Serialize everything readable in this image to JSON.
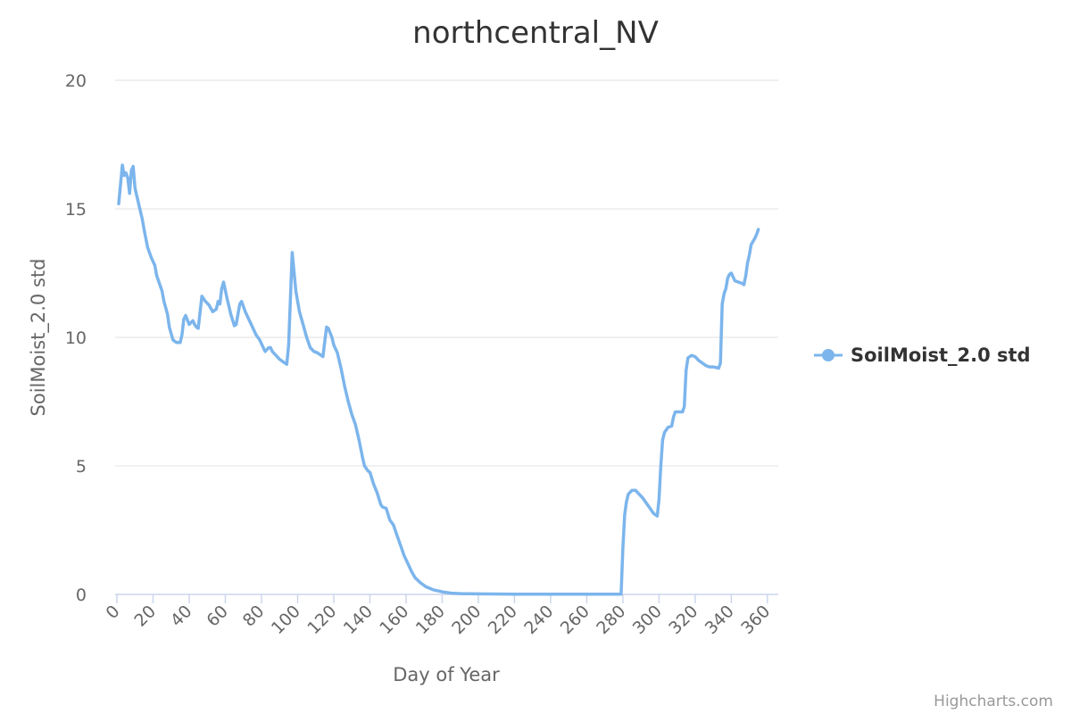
{
  "chart_data": {
    "type": "line",
    "title": "northcentral_NV",
    "xlabel": "Day of Year",
    "ylabel": "SoilMoist_2.0 std",
    "xlim": [
      -1,
      366
    ],
    "ylim": [
      0,
      20
    ],
    "x_ticks": [
      0,
      20,
      40,
      60,
      80,
      100,
      120,
      140,
      160,
      180,
      200,
      220,
      240,
      260,
      280,
      300,
      320,
      340,
      360
    ],
    "y_ticks": [
      0,
      5,
      10,
      15,
      20
    ],
    "grid": "horizontal",
    "legend_position": "right",
    "series": [
      {
        "name": "SoilMoist_2.0 std",
        "color": "#7cb5ec",
        "points": [
          [
            1,
            15.2
          ],
          [
            3,
            16.7
          ],
          [
            4,
            16.3
          ],
          [
            5,
            16.4
          ],
          [
            6,
            16.2
          ],
          [
            7,
            15.6
          ],
          [
            8,
            16.5
          ],
          [
            9,
            16.65
          ],
          [
            10,
            15.8
          ],
          [
            12,
            15.2
          ],
          [
            14,
            14.6
          ],
          [
            15,
            14.2
          ],
          [
            17,
            13.5
          ],
          [
            19,
            13.1
          ],
          [
            21,
            12.8
          ],
          [
            22,
            12.4
          ],
          [
            24,
            12.0
          ],
          [
            25,
            11.8
          ],
          [
            26,
            11.4
          ],
          [
            28,
            10.9
          ],
          [
            29,
            10.4
          ],
          [
            31,
            9.9
          ],
          [
            33,
            9.8
          ],
          [
            35,
            9.8
          ],
          [
            36,
            10.1
          ],
          [
            37,
            10.7
          ],
          [
            38,
            10.85
          ],
          [
            40,
            10.5
          ],
          [
            42,
            10.65
          ],
          [
            43,
            10.5
          ],
          [
            44,
            10.4
          ],
          [
            45,
            10.35
          ],
          [
            47,
            11.6
          ],
          [
            49,
            11.4
          ],
          [
            51,
            11.25
          ],
          [
            53,
            11.0
          ],
          [
            54,
            11.05
          ],
          [
            55,
            11.1
          ],
          [
            56,
            11.4
          ],
          [
            57,
            11.3
          ],
          [
            58,
            11.9
          ],
          [
            59,
            12.15
          ],
          [
            61,
            11.5
          ],
          [
            63,
            10.9
          ],
          [
            65,
            10.45
          ],
          [
            66,
            10.5
          ],
          [
            68,
            11.3
          ],
          [
            69,
            11.4
          ],
          [
            71,
            11.0
          ],
          [
            73,
            10.7
          ],
          [
            75,
            10.4
          ],
          [
            77,
            10.1
          ],
          [
            79,
            9.9
          ],
          [
            81,
            9.6
          ],
          [
            82,
            9.45
          ],
          [
            84,
            9.6
          ],
          [
            85,
            9.6
          ],
          [
            86,
            9.45
          ],
          [
            88,
            9.3
          ],
          [
            90,
            9.15
          ],
          [
            92,
            9.05
          ],
          [
            94,
            8.95
          ],
          [
            95,
            9.7
          ],
          [
            97,
            13.3
          ],
          [
            99,
            11.8
          ],
          [
            101,
            11.0
          ],
          [
            103,
            10.5
          ],
          [
            105,
            10.0
          ],
          [
            107,
            9.6
          ],
          [
            109,
            9.45
          ],
          [
            111,
            9.4
          ],
          [
            113,
            9.3
          ],
          [
            114,
            9.25
          ],
          [
            116,
            10.4
          ],
          [
            117,
            10.35
          ],
          [
            119,
            10.0
          ],
          [
            120,
            9.7
          ],
          [
            122,
            9.4
          ],
          [
            124,
            8.8
          ],
          [
            126,
            8.1
          ],
          [
            128,
            7.5
          ],
          [
            130,
            7.0
          ],
          [
            132,
            6.6
          ],
          [
            134,
            6.0
          ],
          [
            136,
            5.3
          ],
          [
            137,
            5.0
          ],
          [
            139,
            4.8
          ],
          [
            140,
            4.75
          ],
          [
            142,
            4.3
          ],
          [
            144,
            3.95
          ],
          [
            146,
            3.5
          ],
          [
            147,
            3.4
          ],
          [
            149,
            3.35
          ],
          [
            151,
            2.9
          ],
          [
            153,
            2.7
          ],
          [
            155,
            2.3
          ],
          [
            157,
            1.9
          ],
          [
            159,
            1.5
          ],
          [
            161,
            1.2
          ],
          [
            163,
            0.9
          ],
          [
            165,
            0.65
          ],
          [
            168,
            0.45
          ],
          [
            171,
            0.3
          ],
          [
            175,
            0.18
          ],
          [
            180,
            0.1
          ],
          [
            185,
            0.05
          ],
          [
            190,
            0.03
          ],
          [
            200,
            0.02
          ],
          [
            220,
            0.01
          ],
          [
            250,
            0.01
          ],
          [
            279,
            0.01
          ],
          [
            280,
            1.8
          ],
          [
            281,
            3.1
          ],
          [
            282,
            3.6
          ],
          [
            283,
            3.9
          ],
          [
            285,
            4.05
          ],
          [
            287,
            4.05
          ],
          [
            289,
            3.9
          ],
          [
            291,
            3.75
          ],
          [
            293,
            3.55
          ],
          [
            295,
            3.35
          ],
          [
            297,
            3.15
          ],
          [
            299,
            3.05
          ],
          [
            300,
            3.7
          ],
          [
            301,
            5.0
          ],
          [
            302,
            6.0
          ],
          [
            303,
            6.3
          ],
          [
            305,
            6.5
          ],
          [
            307,
            6.55
          ],
          [
            308,
            6.9
          ],
          [
            309,
            7.1
          ],
          [
            311,
            7.1
          ],
          [
            313,
            7.1
          ],
          [
            314,
            7.3
          ],
          [
            315,
            8.7
          ],
          [
            316,
            9.2
          ],
          [
            318,
            9.3
          ],
          [
            320,
            9.25
          ],
          [
            322,
            9.1
          ],
          [
            324,
            9.0
          ],
          [
            326,
            8.9
          ],
          [
            328,
            8.85
          ],
          [
            330,
            8.85
          ],
          [
            332,
            8.82
          ],
          [
            333,
            8.8
          ],
          [
            334,
            9.0
          ],
          [
            335,
            11.3
          ],
          [
            336,
            11.7
          ],
          [
            337,
            11.9
          ],
          [
            338,
            12.3
          ],
          [
            339,
            12.45
          ],
          [
            340,
            12.5
          ],
          [
            342,
            12.2
          ],
          [
            344,
            12.15
          ],
          [
            346,
            12.1
          ],
          [
            347,
            12.05
          ],
          [
            348,
            12.4
          ],
          [
            349,
            12.9
          ],
          [
            350,
            13.2
          ],
          [
            351,
            13.6
          ],
          [
            353,
            13.85
          ],
          [
            354,
            14.0
          ],
          [
            355,
            14.2
          ]
        ]
      }
    ],
    "credit": "Highcharts.com"
  }
}
